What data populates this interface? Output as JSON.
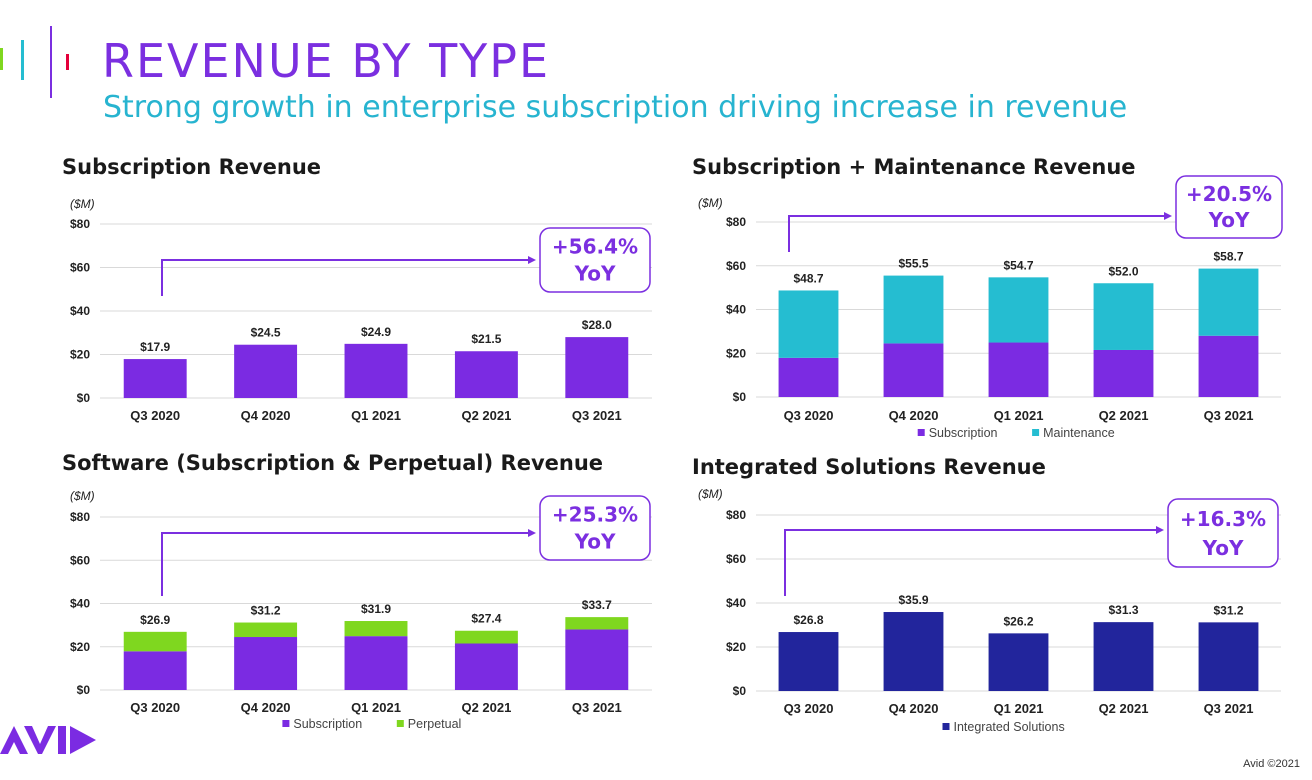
{
  "page": {
    "title": "REVENUE BY TYPE",
    "subtitle": "Strong growth in enterprise subscription driving increase in revenue",
    "footer": "Avid ©2021",
    "logo_text": "AVID"
  },
  "colors": {
    "title": "#7b2fe0",
    "subtitle": "#27b4d0",
    "subscription": "#7b2be2",
    "maintenance": "#25bdd1",
    "perpetual": "#7fd71f",
    "integrated": "#22259c",
    "grid": "#d9d9d9"
  },
  "chart_data": [
    {
      "type": "bar",
      "title": "Subscription Revenue",
      "unit_label": "($M)",
      "categories": [
        "Q3 2020",
        "Q4 2020",
        "Q1 2021",
        "Q2 2021",
        "Q3 2021"
      ],
      "ylim": [
        0,
        80
      ],
      "yticks": [
        "$0",
        "$20",
        "$40",
        "$60",
        "$80"
      ],
      "series": [
        {
          "name": "Subscription",
          "values": [
            17.9,
            24.5,
            24.9,
            21.5,
            28.0
          ],
          "color": "#7b2be2"
        }
      ],
      "total_labels": [
        "$17.9",
        "$24.5",
        "$24.9",
        "$21.5",
        "$28.0"
      ],
      "callout": [
        "+56.4%",
        "YoY"
      ],
      "show_legend": false
    },
    {
      "type": "bar",
      "title": "Subscription + Maintenance Revenue",
      "unit_label": "($M)",
      "categories": [
        "Q3 2020",
        "Q4 2020",
        "Q1 2021",
        "Q2 2021",
        "Q3 2021"
      ],
      "ylim": [
        0,
        80
      ],
      "yticks": [
        "$0",
        "$20",
        "$40",
        "$60",
        "$80"
      ],
      "series": [
        {
          "name": "Subscription",
          "values": [
            17.9,
            24.5,
            24.9,
            21.5,
            28.0
          ],
          "color": "#7b2be2"
        },
        {
          "name": "Maintenance",
          "values": [
            30.8,
            31.0,
            29.8,
            30.5,
            30.7
          ],
          "color": "#25bdd1"
        }
      ],
      "total_labels": [
        "$48.7",
        "$55.5",
        "$54.7",
        "$52.0",
        "$58.7"
      ],
      "callout": [
        "+20.5%",
        "YoY"
      ],
      "show_legend": true
    },
    {
      "type": "bar",
      "title": "Software (Subscription & Perpetual) Revenue",
      "unit_label": "($M)",
      "categories": [
        "Q3 2020",
        "Q4 2020",
        "Q1 2021",
        "Q2 2021",
        "Q3 2021"
      ],
      "ylim": [
        0,
        80
      ],
      "yticks": [
        "$0",
        "$20",
        "$40",
        "$60",
        "$80"
      ],
      "series": [
        {
          "name": "Subscription",
          "values": [
            17.9,
            24.5,
            24.9,
            21.5,
            28.0
          ],
          "color": "#7b2be2"
        },
        {
          "name": "Perpetual",
          "values": [
            9.0,
            6.7,
            7.0,
            5.9,
            5.7
          ],
          "color": "#7fd71f"
        }
      ],
      "total_labels": [
        "$26.9",
        "$31.2",
        "$31.9",
        "$27.4",
        "$33.7"
      ],
      "callout": [
        "+25.3%",
        "YoY"
      ],
      "show_legend": true
    },
    {
      "type": "bar",
      "title": "Integrated Solutions Revenue",
      "unit_label": "($M)",
      "categories": [
        "Q3 2020",
        "Q4 2020",
        "Q1 2021",
        "Q2 2021",
        "Q3 2021"
      ],
      "ylim": [
        0,
        80
      ],
      "yticks": [
        "$0",
        "$20",
        "$40",
        "$60",
        "$80"
      ],
      "series": [
        {
          "name": "Integrated Solutions",
          "values": [
            26.8,
            35.9,
            26.2,
            31.3,
            31.2
          ],
          "color": "#22259c"
        }
      ],
      "total_labels": [
        "$26.8",
        "$35.9",
        "$26.2",
        "$31.3",
        "$31.2"
      ],
      "callout": [
        "+16.3%",
        "YoY"
      ],
      "show_legend": true
    }
  ]
}
